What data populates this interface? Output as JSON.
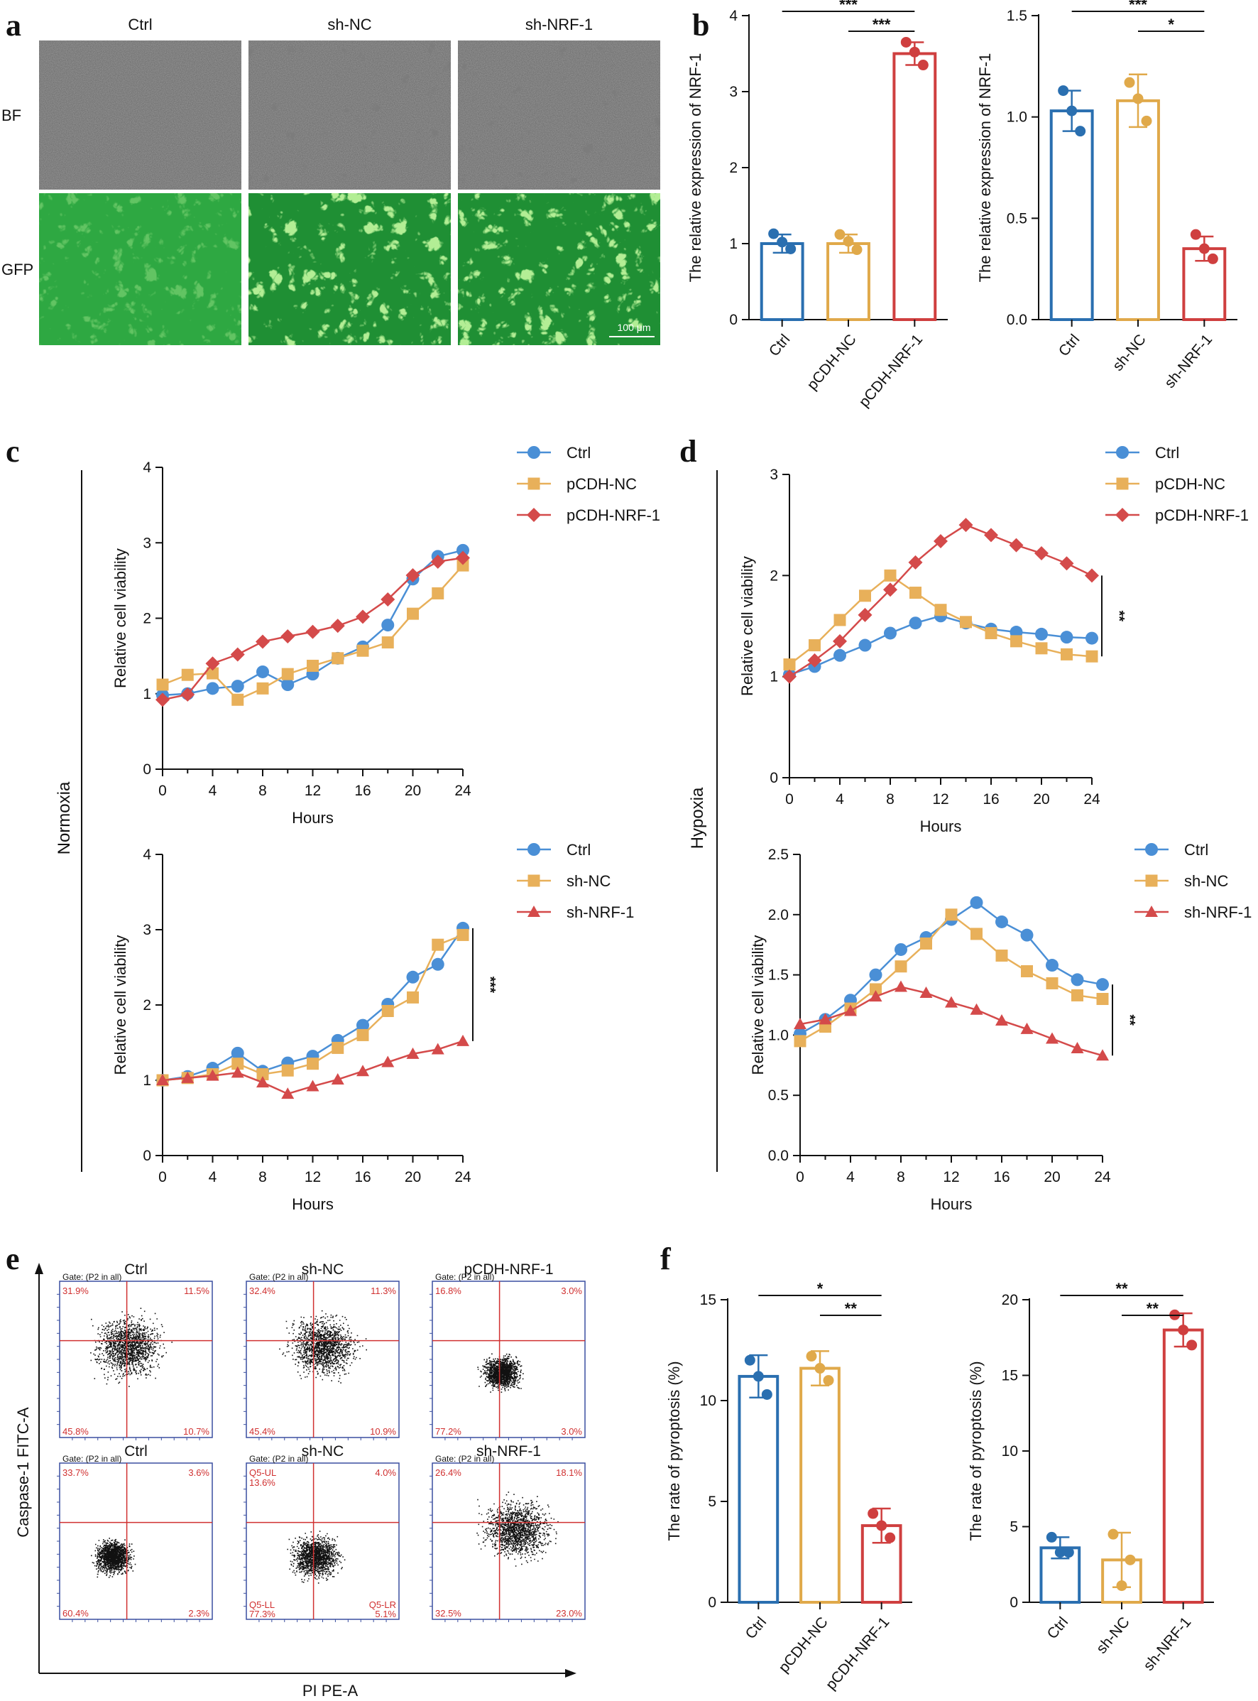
{
  "colors": {
    "blue": "#4a8fd6",
    "orange": "#e8b05a",
    "red": "#d44a4a",
    "bar_blue": "#2a6fb0",
    "bar_orange": "#e0a94a",
    "bar_red": "#cf3f3f",
    "scale_red": "#d03030",
    "flow_box": "#3a4fa0"
  },
  "panel_labels": [
    "a",
    "b",
    "c",
    "d",
    "e",
    "f"
  ],
  "panel_a": {
    "columns": [
      "Ctrl",
      "sh-NC",
      "sh-NRF-1"
    ],
    "rows": [
      "BF",
      "GFP"
    ],
    "scale_bar": "100 μm"
  },
  "panel_c": {
    "side_label": "Normoxia"
  },
  "panel_d": {
    "side_label": "Hypoxia"
  },
  "panel_e": {
    "y_axis_label": "Caspase-1 FITC-A",
    "x_axis_label": "PI PE-A",
    "plots": [
      {
        "title": "Ctrl",
        "gate": "Gate: (P2 in all)",
        "ul": "31.9%",
        "ur": "11.5%",
        "ll": "45.8%",
        "lr": "10.7%"
      },
      {
        "title": "sh-NC",
        "gate": "Gate: (P2 in all)",
        "ul": "32.4%",
        "ur": "11.3%",
        "ll": "45.4%",
        "lr": "10.9%"
      },
      {
        "title": "pCDH-NRF-1",
        "gate": "Gate: (P2 in all)",
        "ul": "16.8%",
        "ur": "3.0%",
        "ll": "77.2%",
        "lr": "3.0%"
      },
      {
        "title": "Ctrl",
        "gate": "Gate: (P2 in all)",
        "ul": "33.7%",
        "ur": "3.6%",
        "ll": "60.4%",
        "lr": "2.3%"
      },
      {
        "title": "sh-NC",
        "gate": "Gate: (P2 in all)",
        "ul": "Q5-UL",
        "ul2": "13.6%",
        "ur": "4.0%",
        "ll": "Q5-LL",
        "ll2": "77.3%",
        "lr": "Q5-LR",
        "lr2": "5.1%"
      },
      {
        "title": "sh-NRF-1",
        "gate": "Gate: (P2 in all)",
        "ul": "26.4%",
        "ur": "18.1%",
        "ll": "32.5%",
        "lr": "23.0%"
      }
    ]
  },
  "chart_data": [
    {
      "id": "b1",
      "type": "bar",
      "categories": [
        "Ctrl",
        "pCDH-NC",
        "pCDH-NRF-1"
      ],
      "values": [
        1.0,
        1.0,
        3.5
      ],
      "errors": [
        0.12,
        0.12,
        0.15
      ],
      "points": [
        [
          1.13,
          0.93,
          1.02
        ],
        [
          1.12,
          0.92,
          1.03
        ],
        [
          3.65,
          3.35,
          3.52
        ]
      ],
      "ylabel": "The relative expression of NRF-1",
      "ylim": [
        0,
        4
      ],
      "yticks": [
        "0",
        "1",
        "2",
        "3",
        "4"
      ],
      "significance": [
        "***",
        "***"
      ]
    },
    {
      "id": "b2",
      "type": "bar",
      "categories": [
        "Ctrl",
        "sh-NC",
        "sh-NRF-1"
      ],
      "values": [
        1.03,
        1.08,
        0.35
      ],
      "errors": [
        0.1,
        0.13,
        0.06
      ],
      "points": [
        [
          1.13,
          0.93,
          1.03
        ],
        [
          1.17,
          0.98,
          1.09
        ],
        [
          0.42,
          0.3,
          0.35
        ]
      ],
      "ylabel": "The relative expression of NRF-1",
      "ylim": [
        0,
        1.5
      ],
      "yticks": [
        "0.0",
        "0.5",
        "1.0",
        "1.5"
      ],
      "significance": [
        "***",
        "*"
      ]
    },
    {
      "id": "c1",
      "type": "line",
      "x": [
        0,
        2,
        4,
        6,
        8,
        10,
        12,
        14,
        16,
        18,
        20,
        22,
        24
      ],
      "series": [
        {
          "name": "Ctrl",
          "values": [
            0.98,
            1.0,
            1.07,
            1.1,
            1.29,
            1.12,
            1.26,
            1.47,
            1.62,
            1.91,
            2.52,
            2.82,
            2.9
          ]
        },
        {
          "name": "pCDH-NC",
          "values": [
            1.12,
            1.25,
            1.27,
            0.92,
            1.07,
            1.26,
            1.37,
            1.47,
            1.57,
            1.68,
            2.06,
            2.33,
            2.7
          ]
        },
        {
          "name": "pCDH-NRF-1",
          "values": [
            0.92,
            0.99,
            1.4,
            1.52,
            1.69,
            1.76,
            1.82,
            1.9,
            2.02,
            2.25,
            2.57,
            2.75,
            2.8
          ]
        }
      ],
      "xlabel": "Hours",
      "ylabel": "Relative cell viability",
      "ylim": [
        0,
        4
      ],
      "yticks": [
        "0",
        "1",
        "2",
        "3",
        "4"
      ],
      "xticks": [
        "0",
        "4",
        "8",
        "12",
        "16",
        "20",
        "24"
      ],
      "significance": ""
    },
    {
      "id": "c2",
      "type": "line",
      "x": [
        0,
        2,
        4,
        6,
        8,
        10,
        12,
        14,
        16,
        18,
        20,
        22,
        24
      ],
      "series": [
        {
          "name": "Ctrl",
          "values": [
            1.0,
            1.05,
            1.16,
            1.36,
            1.12,
            1.23,
            1.32,
            1.53,
            1.73,
            2.01,
            2.37,
            2.54,
            3.02
          ]
        },
        {
          "name": "sh-NC",
          "values": [
            1.0,
            1.03,
            1.08,
            1.22,
            1.08,
            1.13,
            1.22,
            1.43,
            1.6,
            1.92,
            2.1,
            2.8,
            2.93
          ]
        },
        {
          "name": "sh-NRF-1",
          "values": [
            1.0,
            1.03,
            1.06,
            1.1,
            0.97,
            0.82,
            0.92,
            1.01,
            1.12,
            1.24,
            1.35,
            1.41,
            1.52
          ]
        }
      ],
      "xlabel": "Hours",
      "ylabel": "Relative cell viability",
      "ylim": [
        0,
        4
      ],
      "yticks": [
        "0",
        "1",
        "2",
        "3",
        "4"
      ],
      "xticks": [
        "0",
        "4",
        "8",
        "12",
        "16",
        "20",
        "24"
      ],
      "significance": "***"
    },
    {
      "id": "d1",
      "type": "line",
      "x": [
        0,
        2,
        4,
        6,
        8,
        10,
        12,
        14,
        16,
        18,
        20,
        22,
        24
      ],
      "series": [
        {
          "name": "Ctrl",
          "values": [
            1.02,
            1.1,
            1.21,
            1.31,
            1.43,
            1.53,
            1.6,
            1.53,
            1.47,
            1.44,
            1.42,
            1.39,
            1.38
          ]
        },
        {
          "name": "pCDH-NC",
          "values": [
            1.12,
            1.31,
            1.56,
            1.8,
            2.0,
            1.83,
            1.66,
            1.54,
            1.43,
            1.35,
            1.28,
            1.22,
            1.2
          ]
        },
        {
          "name": "pCDH-NRF-1",
          "values": [
            1.0,
            1.16,
            1.35,
            1.61,
            1.86,
            2.13,
            2.34,
            2.5,
            2.4,
            2.3,
            2.22,
            2.12,
            2.0
          ]
        }
      ],
      "xlabel": "Hours",
      "ylabel": "Relative cell viability",
      "ylim": [
        0,
        3
      ],
      "yticks": [
        "0",
        "1",
        "2",
        "3"
      ],
      "xticks": [
        "0",
        "4",
        "8",
        "12",
        "16",
        "20",
        "24"
      ],
      "significance": "**"
    },
    {
      "id": "d2",
      "type": "line",
      "x": [
        0,
        2,
        4,
        6,
        8,
        10,
        12,
        14,
        16,
        18,
        20,
        22,
        24
      ],
      "series": [
        {
          "name": "Ctrl",
          "values": [
            1.01,
            1.13,
            1.29,
            1.5,
            1.71,
            1.81,
            1.96,
            2.1,
            1.94,
            1.83,
            1.58,
            1.46,
            1.42
          ]
        },
        {
          "name": "sh-NC",
          "values": [
            0.95,
            1.07,
            1.22,
            1.38,
            1.57,
            1.76,
            2.0,
            1.84,
            1.66,
            1.53,
            1.43,
            1.33,
            1.3
          ]
        },
        {
          "name": "sh-NRF-1",
          "values": [
            1.09,
            1.13,
            1.2,
            1.32,
            1.4,
            1.35,
            1.27,
            1.21,
            1.12,
            1.05,
            0.97,
            0.89,
            0.83
          ]
        }
      ],
      "xlabel": "Hours",
      "ylabel": "Relative cell viability",
      "ylim": [
        0,
        2.5
      ],
      "yticks": [
        "0.0",
        "0.5",
        "1.0",
        "1.5",
        "2.0",
        "2.5"
      ],
      "xticks": [
        "0",
        "4",
        "8",
        "12",
        "16",
        "20",
        "24"
      ],
      "significance": "**"
    },
    {
      "id": "f1",
      "type": "bar",
      "categories": [
        "Ctrl",
        "pCDH-NC",
        "pCDH-NRF-1"
      ],
      "values": [
        11.2,
        11.6,
        3.8
      ],
      "errors": [
        1.05,
        0.85,
        0.85
      ],
      "points": [
        [
          12.0,
          10.3,
          11.2
        ],
        [
          12.2,
          11.0,
          11.6
        ],
        [
          4.4,
          3.2,
          3.8
        ]
      ],
      "ylabel": "The rate of  pyroptosis (%)",
      "ylim": [
        0,
        15
      ],
      "yticks": [
        "0",
        "5",
        "10",
        "15"
      ],
      "significance": [
        "*",
        "**"
      ]
    },
    {
      "id": "f2",
      "type": "bar",
      "categories": [
        "Ctrl",
        "sh-NC",
        "sh-NRF-1"
      ],
      "values": [
        3.6,
        2.8,
        18.0
      ],
      "errors": [
        0.7,
        1.8,
        1.1
      ],
      "points": [
        [
          4.3,
          3.3,
          3.3
        ],
        [
          4.5,
          2.8,
          1.1
        ],
        [
          19.0,
          17.0,
          18.0
        ]
      ],
      "ylabel": "The rate of  pyroptosis (%)",
      "ylim": [
        0,
        20
      ],
      "yticks": [
        "0",
        "5",
        "10",
        "15",
        "20"
      ],
      "significance": [
        "**",
        "**"
      ]
    }
  ]
}
